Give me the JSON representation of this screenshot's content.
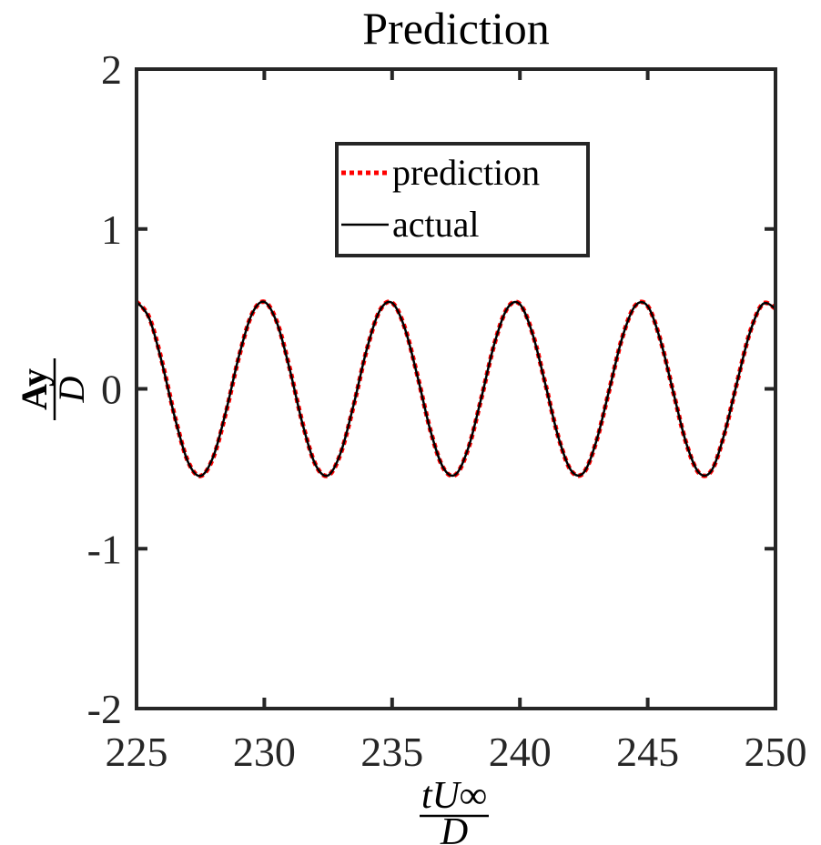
{
  "chart_data": {
    "type": "line",
    "title": "Prediction",
    "xlabel": {
      "numerator": "tU∞",
      "denominator": "D"
    },
    "ylabel": {
      "numerator": "Ay",
      "denominator": "D"
    },
    "xlim": [
      225,
      250
    ],
    "ylim": [
      -2,
      2
    ],
    "xticks": [
      225,
      230,
      235,
      240,
      245,
      250
    ],
    "yticks": [
      -2,
      -1,
      0,
      1,
      2
    ],
    "xtick_labels": [
      "225",
      "230",
      "235",
      "240",
      "245",
      "250"
    ],
    "ytick_labels": [
      "-2",
      "-1",
      "0",
      "1",
      "2"
    ],
    "grid": false,
    "legend_position": "upper-center",
    "series": [
      {
        "name": "prediction",
        "color": "#ff0000",
        "style": "dotted",
        "x": [
          225.0,
          225.5,
          226.0,
          226.5,
          227.0,
          227.5,
          228.0,
          228.5,
          229.0,
          229.5,
          230.0,
          230.5,
          231.0,
          231.5,
          232.0,
          232.5,
          233.0,
          233.5,
          234.0,
          234.5,
          235.0,
          235.5,
          236.0,
          236.5,
          237.0,
          237.5,
          238.0,
          238.5,
          239.0,
          239.5,
          240.0,
          240.5,
          241.0,
          241.5,
          242.0,
          242.5,
          243.0,
          243.5,
          244.0,
          244.5,
          245.0,
          245.5,
          246.0,
          246.5,
          247.0,
          247.5,
          248.0,
          248.5,
          249.0,
          249.5,
          250.0
        ],
        "y": [
          0.545,
          0.445,
          0.168,
          -0.174,
          -0.449,
          -0.545,
          -0.43,
          -0.147,
          0.196,
          0.462,
          0.544,
          0.415,
          0.124,
          -0.218,
          -0.473,
          -0.542,
          -0.398,
          -0.101,
          0.239,
          0.484,
          0.539,
          0.381,
          0.077,
          -0.26,
          -0.494,
          -0.535,
          -0.363,
          -0.053,
          0.28,
          0.503,
          0.53,
          0.344,
          0.029,
          -0.299,
          -0.511,
          -0.524,
          -0.324,
          -0.005,
          0.318,
          0.518,
          0.518,
          0.304,
          -0.019,
          -0.336,
          -0.525,
          -0.511,
          -0.283,
          0.043,
          0.354,
          0.531,
          0.503
        ]
      },
      {
        "name": "actual",
        "color": "#000000",
        "style": "solid",
        "x": [
          225.0,
          225.5,
          226.0,
          226.5,
          227.0,
          227.5,
          228.0,
          228.5,
          229.0,
          229.5,
          230.0,
          230.5,
          231.0,
          231.5,
          232.0,
          232.5,
          233.0,
          233.5,
          234.0,
          234.5,
          235.0,
          235.5,
          236.0,
          236.5,
          237.0,
          237.5,
          238.0,
          238.5,
          239.0,
          239.5,
          240.0,
          240.5,
          241.0,
          241.5,
          242.0,
          242.5,
          243.0,
          243.5,
          244.0,
          244.5,
          245.0,
          245.5,
          246.0,
          246.5,
          247.0,
          247.5,
          248.0,
          248.5,
          249.0,
          249.5,
          250.0
        ],
        "y": [
          0.545,
          0.44,
          0.16,
          -0.18,
          -0.452,
          -0.545,
          -0.425,
          -0.14,
          0.2,
          0.463,
          0.544,
          0.41,
          0.118,
          -0.222,
          -0.474,
          -0.541,
          -0.394,
          -0.096,
          0.242,
          0.484,
          0.538,
          0.377,
          0.073,
          -0.262,
          -0.493,
          -0.534,
          -0.36,
          -0.05,
          0.282,
          0.502,
          0.529,
          0.341,
          0.026,
          -0.3,
          -0.51,
          -0.523,
          -0.322,
          -0.003,
          0.318,
          0.517,
          0.517,
          0.302,
          -0.02,
          -0.336,
          -0.524,
          -0.51,
          -0.281,
          0.043,
          0.353,
          0.53,
          0.502
        ]
      }
    ]
  }
}
